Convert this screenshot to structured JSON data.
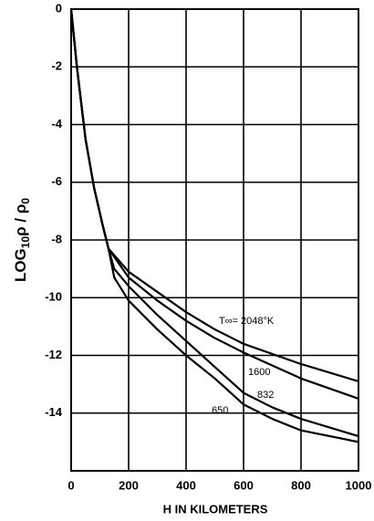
{
  "chart_data": {
    "type": "line",
    "x_label": "H IN KILOMETERS",
    "y_label": [
      "LOG",
      "10",
      "ρ / ρ",
      "0"
    ],
    "xlim": [
      0,
      1000
    ],
    "ylim": [
      -16,
      0
    ],
    "xticks": [
      0,
      200,
      400,
      600,
      800,
      1000
    ],
    "yticks": [
      0,
      -2,
      -4,
      -6,
      -8,
      -10,
      -12,
      -14
    ],
    "grid": true,
    "series": [
      {
        "name": "T∞= 2048°K",
        "color": "#000000",
        "x": [
          0,
          20,
          50,
          80,
          110,
          130,
          200,
          300,
          400,
          500,
          600,
          800,
          1000
        ],
        "values": [
          0,
          -2,
          -4.5,
          -6.2,
          -7.5,
          -8.3,
          -9.1,
          -9.8,
          -10.5,
          -11.1,
          -11.6,
          -12.3,
          -12.9
        ]
      },
      {
        "name": "1600",
        "color": "#000000",
        "x": [
          0,
          20,
          50,
          80,
          110,
          130,
          200,
          300,
          400,
          500,
          600,
          800,
          1000
        ],
        "values": [
          0,
          -2,
          -4.5,
          -6.2,
          -7.5,
          -8.3,
          -9.3,
          -10.1,
          -10.8,
          -11.4,
          -11.9,
          -12.8,
          -13.5
        ]
      },
      {
        "name": "832",
        "color": "#000000",
        "x": [
          0,
          20,
          50,
          80,
          110,
          130,
          150,
          200,
          300,
          400,
          500,
          600,
          700,
          800,
          1000
        ],
        "values": [
          0,
          -2,
          -4.5,
          -6.2,
          -7.5,
          -8.3,
          -9.0,
          -9.6,
          -10.6,
          -11.5,
          -12.4,
          -13.3,
          -13.8,
          -14.2,
          -14.8
        ]
      },
      {
        "name": "650",
        "color": "#000000",
        "x": [
          0,
          20,
          50,
          80,
          110,
          130,
          150,
          200,
          300,
          400,
          500,
          600,
          700,
          800,
          1000
        ],
        "values": [
          0,
          -2,
          -4.5,
          -6.2,
          -7.5,
          -8.3,
          -9.3,
          -10.1,
          -11.1,
          -12.0,
          -12.8,
          -13.7,
          -14.2,
          -14.6,
          -15.0
        ]
      }
    ]
  }
}
